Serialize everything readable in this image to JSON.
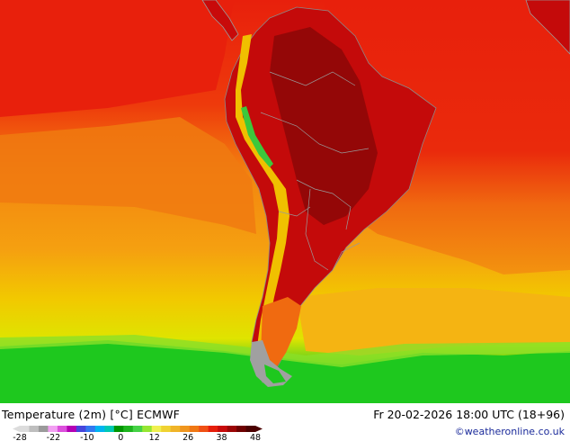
{
  "title": "Temperature (2m) [°C] ECMWF",
  "datetime": "Fr 20-02-2026 18:00 UTC (18+96)",
  "credit": "©weatheronline.co.uk",
  "legend": {
    "ticks": [
      "-28",
      "-22",
      "-10",
      "0",
      "12",
      "26",
      "38",
      "48"
    ],
    "colors": [
      "#dcdcdc",
      "#bebebe",
      "#9a9a9a",
      "#f2a0f2",
      "#dc50dc",
      "#b400b4",
      "#4646dc",
      "#3278f0",
      "#00b4f0",
      "#00c8b4",
      "#009600",
      "#1eb41e",
      "#46d246",
      "#96e632",
      "#f0f050",
      "#f0d232",
      "#f0b428",
      "#f0961e",
      "#f07814",
      "#f05014",
      "#e61e0a",
      "#c80a0a",
      "#9b0505",
      "#6e0000",
      "#4b0000"
    ]
  },
  "colors": {
    "ocean_warm": "#e8200c",
    "ocean_orange": "#f3870f",
    "ocean_yellow": "#f2c800",
    "ocean_green": "#1ec81e",
    "land_hot": "#b00a0a",
    "land_core": "#8c0606",
    "andes": "#f0c000",
    "coast": "#9a9a9a"
  }
}
